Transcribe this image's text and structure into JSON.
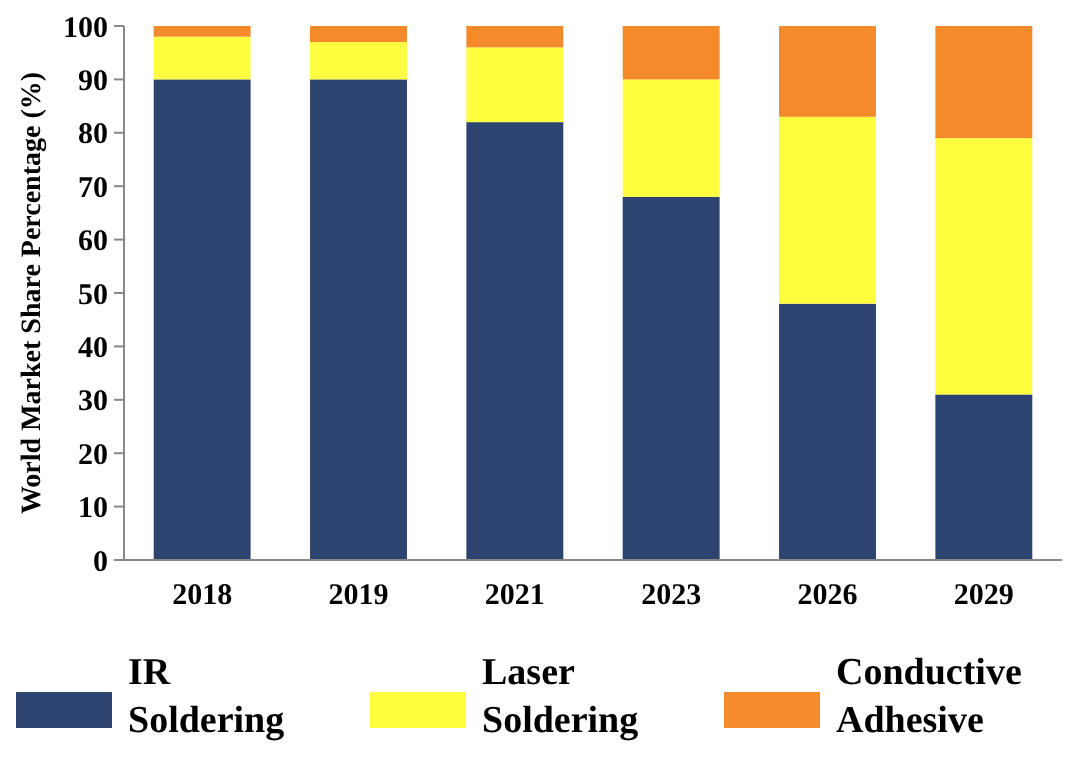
{
  "chart_data": {
    "type": "bar",
    "stacked": true,
    "ylabel": "World Market Share Percentage (%)",
    "categories": [
      "2018",
      "2019",
      "2021",
      "2023",
      "2026",
      "2029"
    ],
    "series": [
      {
        "name": "IR Soldering",
        "color": "#2e4470",
        "values": [
          90,
          90,
          82,
          68,
          48,
          31
        ]
      },
      {
        "name": "Laser Soldering",
        "color": "#ffff40",
        "values": [
          8,
          7,
          14,
          22,
          35,
          48
        ]
      },
      {
        "name": "Conductive Adhesive",
        "color": "#f58a2a",
        "values": [
          2,
          3,
          4,
          10,
          17,
          21
        ]
      }
    ],
    "ylim": [
      0,
      100
    ],
    "yticks": [
      0,
      10,
      20,
      30,
      40,
      50,
      60,
      70,
      80,
      90,
      100
    ],
    "grid": false,
    "legend": "bottom"
  }
}
